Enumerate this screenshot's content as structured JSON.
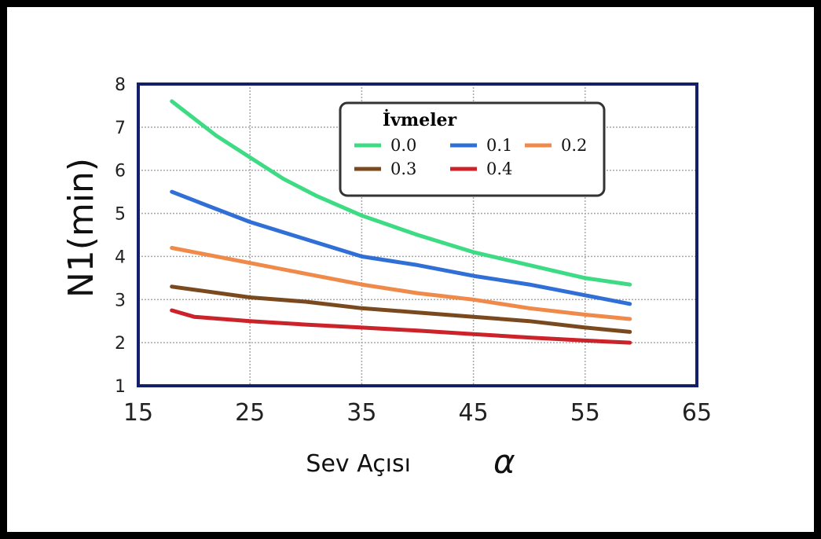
{
  "chart_data": {
    "type": "line",
    "xlabel": "Sev Açısı",
    "xlabel_symbol": "α",
    "ylabel": "N1(min)",
    "xlim": [
      15,
      65
    ],
    "ylim": [
      1,
      8
    ],
    "x_ticks": [
      15,
      25,
      35,
      45,
      55,
      65
    ],
    "y_ticks": [
      1,
      2,
      3,
      4,
      5,
      6,
      7,
      8
    ],
    "grid": true,
    "legend_title": "İvmeler",
    "legend_position": "top-right",
    "series": [
      {
        "name": "0.0",
        "color": "#3ddc84",
        "x": [
          18,
          20,
          22,
          25,
          28,
          31,
          35,
          40,
          45,
          50,
          55,
          59
        ],
        "y": [
          7.6,
          7.2,
          6.8,
          6.3,
          5.8,
          5.4,
          4.95,
          4.5,
          4.1,
          3.8,
          3.5,
          3.35
        ]
      },
      {
        "name": "0.1",
        "color": "#2f6fd6",
        "x": [
          18,
          20,
          25,
          30,
          35,
          40,
          45,
          50,
          55,
          59
        ],
        "y": [
          5.5,
          5.3,
          4.8,
          4.4,
          4.0,
          3.8,
          3.55,
          3.35,
          3.1,
          2.9
        ]
      },
      {
        "name": "0.2",
        "color": "#f08a4b",
        "x": [
          18,
          25,
          30,
          35,
          40,
          45,
          50,
          55,
          59
        ],
        "y": [
          4.2,
          3.85,
          3.6,
          3.35,
          3.15,
          3.0,
          2.8,
          2.65,
          2.55
        ]
      },
      {
        "name": "0.3",
        "color": "#7a4a1e",
        "x": [
          18,
          25,
          30,
          35,
          40,
          45,
          50,
          55,
          59
        ],
        "y": [
          3.3,
          3.05,
          2.95,
          2.8,
          2.7,
          2.6,
          2.5,
          2.35,
          2.25
        ]
      },
      {
        "name": "0.4",
        "color": "#cc2229",
        "x": [
          18,
          20,
          25,
          30,
          35,
          40,
          45,
          50,
          55,
          59
        ],
        "y": [
          2.75,
          2.6,
          2.5,
          2.42,
          2.35,
          2.28,
          2.2,
          2.12,
          2.05,
          2.0
        ]
      }
    ]
  }
}
